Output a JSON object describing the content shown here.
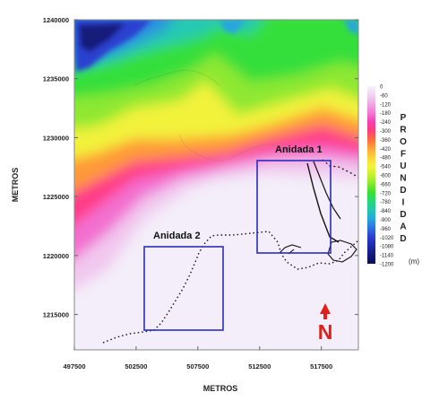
{
  "axes": {
    "xlabel": "METROS",
    "ylabel": "METROS",
    "x_ticks": [
      "497500",
      "502500",
      "507500",
      "512500",
      "517500"
    ],
    "y_ticks": [
      "1240000",
      "1235000",
      "1230000",
      "1225000",
      "1220000",
      "1215000"
    ],
    "x_range": [
      497500,
      520500
    ],
    "y_range": [
      1212000,
      1240000
    ]
  },
  "colorbar": {
    "title": "PROFUNDIDAD",
    "unit": "(m)",
    "labels": [
      "0",
      "-60",
      "-120",
      "-180",
      "-240",
      "-300",
      "-360",
      "-420",
      "-480",
      "-540",
      "-600",
      "-660",
      "-720",
      "-780",
      "-840",
      "-900",
      "-960",
      "-1020",
      "-1080",
      "-1140",
      "-1200"
    ],
    "colors": [
      "#f7f2fb",
      "#eed6f4",
      "#f2a7e4",
      "#f47ad2",
      "#f33fb6",
      "#ff3c7a",
      "#ff6a3d",
      "#ffa33a",
      "#ffd23a",
      "#f4f43b",
      "#c8f032",
      "#84ea2e",
      "#38e02e",
      "#23d77a",
      "#22c6b0",
      "#25a6e0",
      "#2f6fe2",
      "#2a3fcf",
      "#1c2aa8",
      "#141a7a",
      "#0b1155"
    ]
  },
  "annotations": {
    "nest1": "Anidada 1",
    "nest2": "Anidada 2",
    "north_symbol": "N"
  },
  "colors": {
    "nest_box": "#2b2dbd",
    "coast": "#111111",
    "deep": "#0b1155",
    "shallow": "#f3eef9"
  }
}
